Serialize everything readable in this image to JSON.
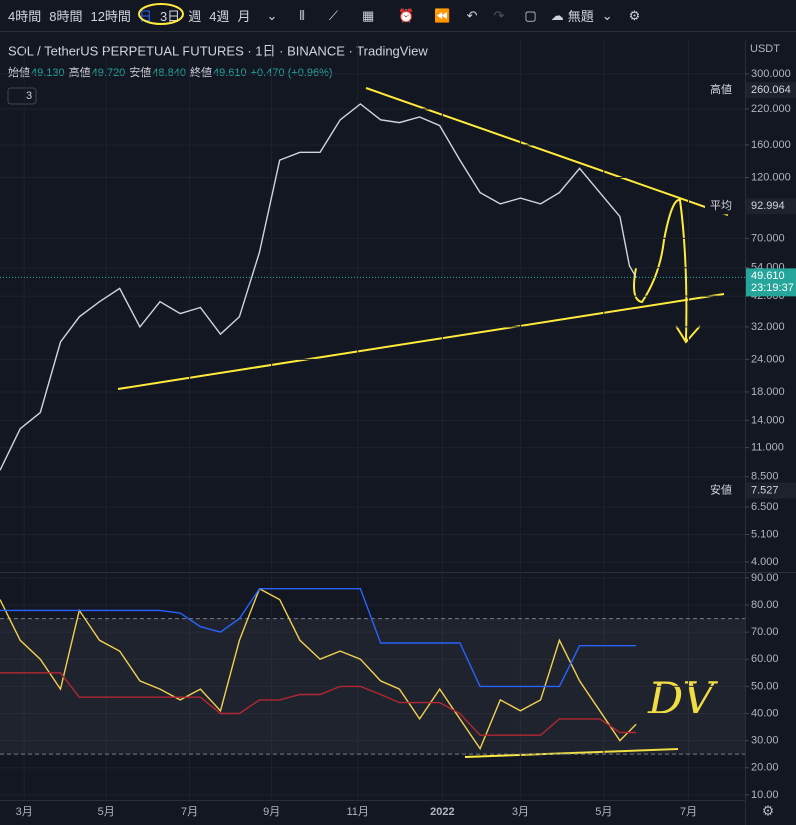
{
  "toolbar": {
    "intervals": [
      "4時間",
      "8時間",
      "12時間",
      "日",
      "3日",
      "週",
      "4週",
      "月"
    ],
    "layout_name": "無題"
  },
  "header": {
    "symbol": "SOL / TetherUS PERPETUAL FUTURES · 1日 · BINANCE · TradingView",
    "currency": "USDT",
    "ohlc": [
      {
        "label": "始値",
        "value": "49.130"
      },
      {
        "label": "高値",
        "value": "49.720"
      },
      {
        "label": "安値",
        "value": "48.840"
      },
      {
        "label": "終値",
        "value": "49.610"
      }
    ],
    "change": "+0.470 (+0.96%)",
    "indicators": "3"
  },
  "annotations": {
    "note": "DV"
  },
  "chart_data": [
    {
      "type": "line",
      "log_scale": true,
      "color": "#d1d4dc",
      "x": [
        0,
        15,
        30,
        45,
        59,
        74,
        89,
        104,
        119,
        134,
        149,
        164,
        178,
        193,
        208,
        223,
        238,
        253,
        268,
        283,
        297,
        312,
        327,
        342,
        357,
        372,
        387,
        402,
        416,
        431,
        446,
        461,
        468,
        473
      ],
      "values": [
        9,
        13,
        15,
        28,
        35,
        40,
        45,
        32,
        40,
        36,
        38,
        30,
        35,
        62,
        140,
        150,
        150,
        200,
        230,
        200,
        195,
        205,
        190,
        140,
        105,
        95,
        100,
        95,
        105,
        130,
        105,
        85,
        55,
        49.61
      ],
      "xlim": [
        0,
        554
      ],
      "xticks": [
        {
          "value": 18,
          "label": "3月"
        },
        {
          "value": 79,
          "label": "5月"
        },
        {
          "value": 141,
          "label": "7月"
        },
        {
          "value": 202,
          "label": "9月"
        },
        {
          "value": 266,
          "label": "11月"
        },
        {
          "value": 329,
          "label": "2022"
        },
        {
          "value": 387,
          "label": "3月"
        },
        {
          "value": 449,
          "label": "5月"
        },
        {
          "value": 512,
          "label": "7月"
        }
      ],
      "ylim": [
        3.66,
        405
      ],
      "yticks": [
        {
          "value": 300,
          "label": "300.000"
        },
        {
          "value": 220,
          "label": "220.000"
        },
        {
          "value": 160,
          "label": "160.000"
        },
        {
          "value": 120,
          "label": "120.000"
        },
        {
          "value": 70,
          "label": "70.000"
        },
        {
          "value": 54,
          "label": "54.000"
        },
        {
          "value": 42,
          "label": "42.000"
        },
        {
          "value": 32,
          "label": "32.000"
        },
        {
          "value": 24,
          "label": "24.000"
        },
        {
          "value": 18,
          "label": "18.000"
        },
        {
          "value": 14,
          "label": "14.000"
        },
        {
          "value": 11,
          "label": "11.000"
        },
        {
          "value": 8.5,
          "label": "8.500"
        },
        {
          "value": 6.5,
          "label": "6.500"
        },
        {
          "value": 5.1,
          "label": "5.100"
        },
        {
          "value": 4,
          "label": "4.000"
        }
      ],
      "price_tags": [
        {
          "name": "高値",
          "value": 260.064,
          "label": "260.064"
        },
        {
          "name": "平均",
          "value": 92.994,
          "label": "92.994"
        },
        {
          "name": "安値",
          "value": 7.527,
          "label": "7.527"
        }
      ],
      "last_price": {
        "value": 49.61,
        "label": "49.610",
        "time": "23:19:37",
        "color": "#26a69a"
      }
    },
    {
      "type": "line",
      "x": [
        0,
        15,
        30,
        45,
        59,
        74,
        89,
        104,
        119,
        134,
        149,
        164,
        178,
        193,
        208,
        223,
        238,
        253,
        268,
        283,
        297,
        312,
        327,
        342,
        357,
        372,
        387,
        402,
        416,
        431,
        446,
        461,
        473
      ],
      "series": [
        {
          "color": "#f0d050",
          "values": [
            82,
            67,
            60,
            49,
            78,
            67,
            63,
            52,
            49,
            45,
            49,
            41,
            67,
            86,
            82,
            67,
            60,
            63,
            60,
            52,
            49,
            38,
            49,
            38,
            27,
            45,
            41,
            45,
            67,
            52,
            41,
            30,
            36
          ]
        },
        {
          "color": "#2962ff",
          "values": [
            78,
            78,
            78,
            78,
            78,
            78,
            78,
            78,
            78,
            77,
            72,
            70,
            75,
            86,
            86,
            86,
            86,
            86,
            86,
            66,
            66,
            66,
            66,
            66,
            50,
            50,
            50,
            50,
            50,
            65,
            65,
            65,
            65
          ]
        },
        {
          "color": "#b22833",
          "values": [
            55,
            55,
            55,
            55,
            46,
            46,
            46,
            46,
            46,
            46,
            46,
            40,
            40,
            45,
            45,
            47,
            47,
            50,
            50,
            47,
            44,
            44,
            44,
            40,
            32,
            32,
            32,
            32,
            38,
            38,
            38,
            33,
            33
          ]
        }
      ],
      "xlim": [
        0,
        554
      ],
      "ylim": [
        8.1,
        91.8
      ],
      "bands": [
        25,
        75
      ],
      "yticks": [
        {
          "value": 90,
          "label": "90.00"
        },
        {
          "value": 80,
          "label": "80.00"
        },
        {
          "value": 70,
          "label": "70.00"
        },
        {
          "value": 60,
          "label": "60.00"
        },
        {
          "value": 50,
          "label": "50.00"
        },
        {
          "value": 40,
          "label": "40.00"
        },
        {
          "value": 30,
          "label": "30.00"
        },
        {
          "value": 20,
          "label": "20.00"
        },
        {
          "value": 10,
          "label": "10.00"
        }
      ]
    }
  ]
}
